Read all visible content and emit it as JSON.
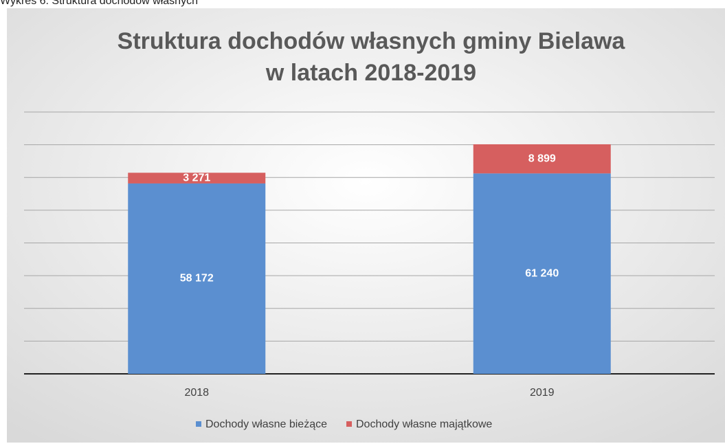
{
  "caption": "Wykres 6. Struktura dochodów własnych",
  "chart_data": {
    "type": "stacked_bar",
    "title": [
      "Struktura dochodów własnych gminy Bielawa",
      "w latach 2018-2019"
    ],
    "categories": [
      "2018",
      "2019"
    ],
    "series": [
      {
        "name": "Dochody własne bieżące",
        "color": "#5b8fd0",
        "values": [
          58172,
          61240
        ],
        "value_labels": [
          "58 172",
          "61 240"
        ]
      },
      {
        "name": "Dochody własne majątkowe",
        "color": "#d65f5f",
        "values": [
          3271,
          8899
        ],
        "value_labels": [
          "3 271",
          "8 899"
        ]
      }
    ],
    "ylim": [
      0,
      80000
    ],
    "yticks": [
      0,
      10000,
      20000,
      30000,
      40000,
      50000,
      60000,
      70000,
      80000
    ],
    "grid": true,
    "legend": "bottom"
  }
}
